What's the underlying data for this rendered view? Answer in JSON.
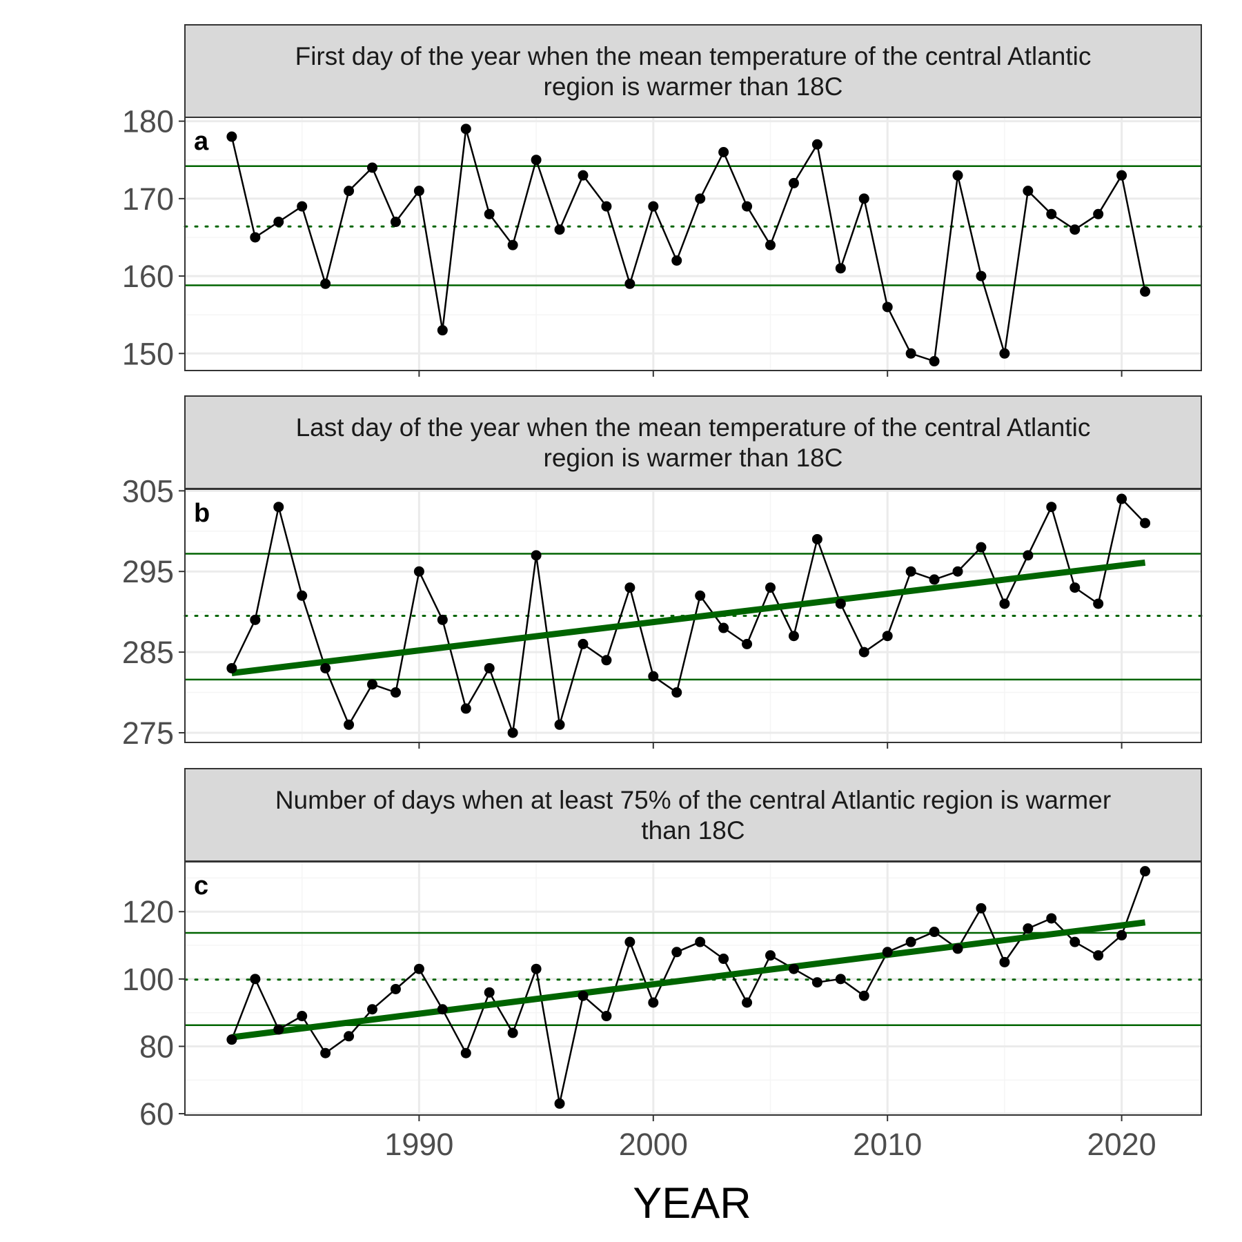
{
  "colors": {
    "strip_fill": "#d9d9d9",
    "frame": "#333333",
    "grid_major": "#ebebeb",
    "grid_minor": "#f5f5f5",
    "series": "#000000",
    "reference": "#006400",
    "trend": "#006400"
  },
  "chart_data": [
    {
      "type": "line",
      "panel": "a",
      "title": "First day of the year when the mean temperature of the central Atlantic region is warmer than 18C",
      "title_lines": [
        "First day of the year when the mean temperature of the central Atlantic",
        "region is warmer than 18C"
      ],
      "xlabel": "YEAR",
      "ylabel": "",
      "xlim": [
        1980.0,
        2023.4
      ],
      "ylim": [
        147.8,
        180.5
      ],
      "yticks": [
        150,
        160,
        170,
        180
      ],
      "x": [
        1982,
        1983,
        1984,
        1985,
        1986,
        1987,
        1988,
        1989,
        1990,
        1991,
        1992,
        1993,
        1994,
        1995,
        1996,
        1997,
        1998,
        1999,
        2000,
        2001,
        2002,
        2003,
        2004,
        2005,
        2006,
        2007,
        2008,
        2009,
        2010,
        2011,
        2012,
        2013,
        2014,
        2015,
        2016,
        2017,
        2018,
        2019,
        2020,
        2021
      ],
      "y": [
        178,
        165,
        167,
        169,
        159,
        171,
        174,
        167,
        171,
        153,
        179,
        168,
        164,
        175,
        166,
        173,
        169,
        159,
        169,
        162,
        170,
        176,
        169,
        164,
        172,
        177,
        161,
        170,
        156,
        150,
        149,
        173,
        160,
        150,
        171,
        168,
        166,
        168,
        173,
        158
      ],
      "reference_lines": {
        "upper": 174.2,
        "mean": 166.4,
        "lower": 158.8
      },
      "trend": null,
      "grid": true
    },
    {
      "type": "line",
      "panel": "b",
      "title": "Last day of the year when the mean temperature of the central Atlantic region is warmer than 18C",
      "title_lines": [
        "Last day of the year when the mean temperature of the central Atlantic",
        "region is warmer than 18C"
      ],
      "xlabel": "YEAR",
      "ylabel": "",
      "xlim": [
        1980.0,
        2023.4
      ],
      "ylim": [
        273.8,
        305.2
      ],
      "yticks": [
        275,
        285,
        295,
        305
      ],
      "x": [
        1982,
        1983,
        1984,
        1985,
        1986,
        1987,
        1988,
        1989,
        1990,
        1991,
        1992,
        1993,
        1994,
        1995,
        1996,
        1997,
        1998,
        1999,
        2000,
        2001,
        2002,
        2003,
        2004,
        2005,
        2006,
        2007,
        2008,
        2009,
        2010,
        2011,
        2012,
        2013,
        2014,
        2015,
        2016,
        2017,
        2018,
        2019,
        2020,
        2021
      ],
      "y": [
        283,
        289,
        303,
        292,
        283,
        276,
        281,
        280,
        295,
        289,
        278,
        283,
        275,
        297,
        276,
        286,
        284,
        293,
        282,
        280,
        292,
        288,
        286,
        293,
        287,
        299,
        291,
        285,
        287,
        295,
        294,
        295,
        298,
        291,
        297,
        303,
        293,
        291,
        304,
        301
      ],
      "reference_lines": {
        "upper": 297.2,
        "mean": 289.5,
        "lower": 281.6
      },
      "trend": {
        "x": [
          1982,
          2021
        ],
        "y": [
          282.4,
          296.1
        ]
      },
      "grid": true
    },
    {
      "type": "line",
      "panel": "c",
      "title": "Number of days when at least 75% of the central Atlantic region is warmer than 18C",
      "title_lines": [
        "Number of days when at least 75% of the central Atlantic region is warmer",
        "than 18C"
      ],
      "xlabel": "YEAR",
      "ylabel": "",
      "xlim": [
        1980.0,
        2023.4
      ],
      "ylim": [
        59.6,
        134.8
      ],
      "yticks": [
        60,
        80,
        100,
        120
      ],
      "xticks": [
        1990,
        2000,
        2010,
        2020
      ],
      "x": [
        1982,
        1983,
        1984,
        1985,
        1986,
        1987,
        1988,
        1989,
        1990,
        1991,
        1992,
        1993,
        1994,
        1995,
        1996,
        1997,
        1998,
        1999,
        2000,
        2001,
        2002,
        2003,
        2004,
        2005,
        2006,
        2007,
        2008,
        2009,
        2010,
        2011,
        2012,
        2013,
        2014,
        2015,
        2016,
        2017,
        2018,
        2019,
        2020,
        2021
      ],
      "y": [
        82,
        100,
        85,
        89,
        78,
        83,
        91,
        97,
        103,
        91,
        78,
        96,
        84,
        103,
        63,
        95,
        89,
        111,
        93,
        108,
        111,
        106,
        93,
        107,
        103,
        99,
        100,
        95,
        108,
        111,
        114,
        109,
        121,
        105,
        115,
        118,
        111,
        107,
        113,
        132
      ],
      "reference_lines": {
        "upper": 113.7,
        "mean": 99.8,
        "lower": 86.3
      },
      "trend": {
        "x": [
          1982,
          2021
        ],
        "y": [
          82.7,
          116.8
        ]
      },
      "grid": true
    }
  ]
}
